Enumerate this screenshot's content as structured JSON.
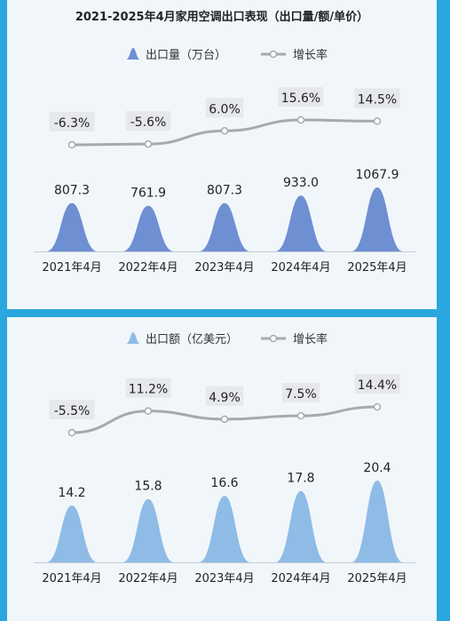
{
  "chart_data": [
    {
      "type": "bar",
      "title": "2021-2025年4月家用空调出口表现（出口量/额/单价）",
      "categories": [
        "2021年4月",
        "2022年4月",
        "2023年4月",
        "2024年4月",
        "2025年4月"
      ],
      "series": [
        {
          "name": "出口量（万台）",
          "type": "bar",
          "values": [
            807.3,
            761.9,
            807.3,
            933.0,
            1067.9
          ],
          "labels": [
            "807.3",
            "761.9",
            "807.3",
            "933.0",
            "1067.9"
          ],
          "color": "#6f8fd3"
        },
        {
          "name": "增长率",
          "type": "line",
          "values": [
            -6.3,
            -5.6,
            6.0,
            15.6,
            14.5
          ],
          "labels": [
            "-6.3%",
            "-5.6%",
            "6.0%",
            "15.6%",
            "14.5%"
          ],
          "color": "#a9a9a9"
        }
      ],
      "legend": "top-center",
      "grid": false
    },
    {
      "type": "bar",
      "title": "",
      "categories": [
        "2021年4月",
        "2022年4月",
        "2023年4月",
        "2024年4月",
        "2025年4月"
      ],
      "series": [
        {
          "name": "出口额（亿美元）",
          "type": "bar",
          "values": [
            14.2,
            15.8,
            16.6,
            17.8,
            20.4
          ],
          "labels": [
            "14.2",
            "15.8",
            "16.6",
            "17.8",
            "20.4"
          ],
          "color": "#8ebce6"
        },
        {
          "name": "增长率",
          "type": "line",
          "values": [
            -5.5,
            11.2,
            4.9,
            7.5,
            14.4
          ],
          "labels": [
            "-5.5%",
            "11.2%",
            "4.9%",
            "7.5%",
            "14.4%"
          ],
          "color": "#a9a9a9"
        }
      ],
      "legend": "top-center",
      "grid": false
    }
  ]
}
